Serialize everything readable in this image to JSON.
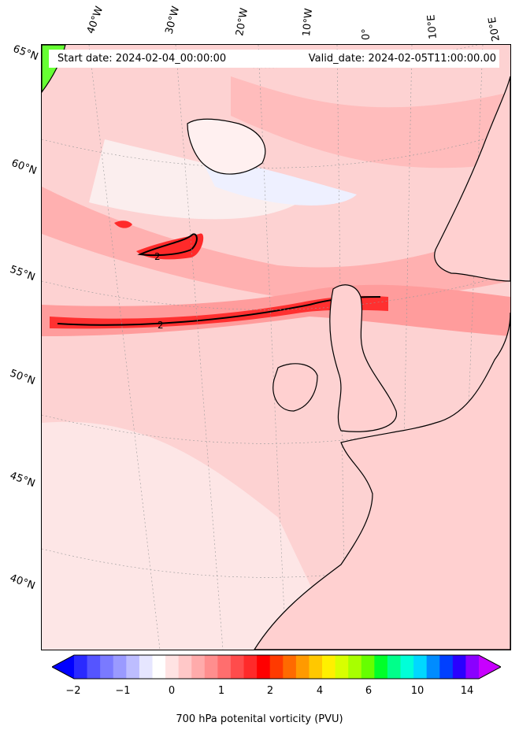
{
  "header": {
    "start_date": "Start date: 2024-02-04_00:00:00",
    "valid_date": "Valid_date: 2024-02-05T11:00:00.00"
  },
  "longitude_labels": [
    "40°W",
    "30°W",
    "20°W",
    "10°W",
    "0°",
    "10°E",
    "20°E"
  ],
  "latitude_labels": [
    "65°N",
    "60°N",
    "55°N",
    "50°N",
    "45°N",
    "40°N"
  ],
  "contour_label": "2",
  "colorbar": {
    "title": "700 hPa potenital vorticity (PVU)",
    "ticks": [
      "−2",
      "−1",
      "0",
      "1",
      "2",
      "4",
      "6",
      "10",
      "14"
    ],
    "colors": [
      "#0000ff",
      "#2a2aff",
      "#5555ff",
      "#7a7aff",
      "#9a9aff",
      "#bdbdff",
      "#e6e6ff",
      "#ffffff",
      "#ffe3e3",
      "#ffc8c8",
      "#ffabab",
      "#ff8e8e",
      "#ff6e6e",
      "#ff4c4c",
      "#ff2a2a",
      "#ff0000",
      "#ff3a00",
      "#ff6a00",
      "#ff9a00",
      "#ffc800",
      "#fff000",
      "#d8ff00",
      "#a8ff00",
      "#66ff00",
      "#00ff2a",
      "#00ff8a",
      "#00ffd8",
      "#00d8ff",
      "#008cff",
      "#0040ff",
      "#2a00ff",
      "#8a00ff",
      "#c800ff"
    ]
  }
}
